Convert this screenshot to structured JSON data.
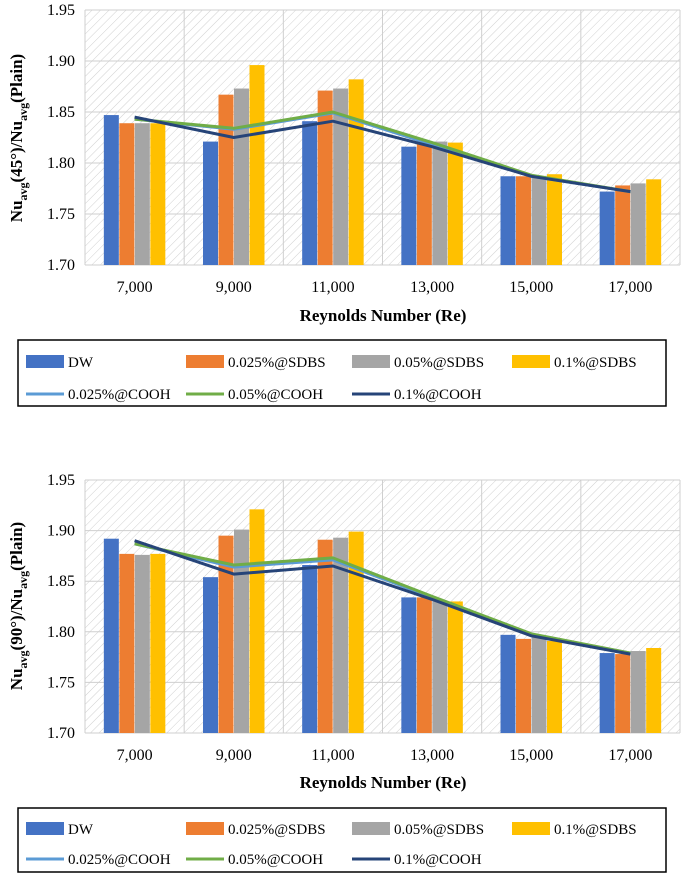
{
  "colors": {
    "DW": "#4472C4",
    "sdbs025": "#ED7D31",
    "sdbs05": "#A5A5A5",
    "sdbs1": "#FFC000",
    "cooh025": "#5B9BD5",
    "cooh05": "#70AD47",
    "cooh1": "#264478"
  },
  "chart_data": [
    {
      "type": "bar",
      "ylabel_main": "Nu",
      "ylabel_sub1": "avg",
      "ylabel_mid": "(45°)/Nu",
      "ylabel_sub2": "avg",
      "ylabel_end": "(Plain)",
      "xlabel": "Reynolds Number (Re)",
      "ylim": [
        1.7,
        1.95
      ],
      "yticks": [
        "1.70",
        "1.75",
        "1.80",
        "1.85",
        "1.90",
        "1.95"
      ],
      "categories": [
        "7,000",
        "9,000",
        "11,000",
        "13,000",
        "15,000",
        "17,000"
      ],
      "bar_series": [
        {
          "name": "DW",
          "color_key": "DW",
          "values": [
            1.847,
            1.821,
            1.841,
            1.816,
            1.787,
            1.772
          ]
        },
        {
          "name": "0.025%@SDBS",
          "color_key": "sdbs025",
          "values": [
            1.839,
            1.867,
            1.871,
            1.82,
            1.787,
            1.778
          ]
        },
        {
          "name": "0.05%@SDBS",
          "color_key": "sdbs05",
          "values": [
            1.839,
            1.873,
            1.873,
            1.821,
            1.787,
            1.78
          ]
        },
        {
          "name": "0.1%@SDBS",
          "color_key": "sdbs1",
          "values": [
            1.839,
            1.896,
            1.882,
            1.82,
            1.789,
            1.784
          ]
        }
      ],
      "line_series": [
        {
          "name": "0.025%@COOH",
          "color_key": "cooh025",
          "values": [
            1.843,
            1.833,
            1.849,
            1.818,
            1.787,
            1.772
          ]
        },
        {
          "name": "0.05%@COOH",
          "color_key": "cooh05",
          "values": [
            1.843,
            1.834,
            1.85,
            1.82,
            1.788,
            1.772
          ]
        },
        {
          "name": "0.1%@COOH",
          "color_key": "cooh1",
          "values": [
            1.845,
            1.825,
            1.841,
            1.816,
            1.787,
            1.772
          ]
        }
      ]
    },
    {
      "type": "bar",
      "ylabel_main": "Nu",
      "ylabel_sub1": "avg",
      "ylabel_mid": "(90°)/Nu",
      "ylabel_sub2": "avg",
      "ylabel_end": "(Plain)",
      "xlabel": "Reynolds Number (Re)",
      "ylim": [
        1.7,
        1.95
      ],
      "yticks": [
        "1.70",
        "1.75",
        "1.80",
        "1.85",
        "1.90",
        "1.95"
      ],
      "categories": [
        "7,000",
        "9,000",
        "11,000",
        "13,000",
        "15,000",
        "17,000"
      ],
      "bar_series": [
        {
          "name": "DW",
          "color_key": "DW",
          "values": [
            1.892,
            1.854,
            1.866,
            1.834,
            1.797,
            1.779
          ]
        },
        {
          "name": "0.025%@SDBS",
          "color_key": "sdbs025",
          "values": [
            1.877,
            1.895,
            1.891,
            1.834,
            1.793,
            1.778
          ]
        },
        {
          "name": "0.05%@SDBS",
          "color_key": "sdbs05",
          "values": [
            1.876,
            1.901,
            1.893,
            1.831,
            1.795,
            1.781
          ]
        },
        {
          "name": "0.1%@SDBS",
          "color_key": "sdbs1",
          "values": [
            1.877,
            1.921,
            1.899,
            1.83,
            1.791,
            1.784
          ]
        }
      ],
      "line_series": [
        {
          "name": "0.025%@COOH",
          "color_key": "cooh025",
          "values": [
            1.887,
            1.864,
            1.871,
            1.834,
            1.797,
            1.779
          ]
        },
        {
          "name": "0.05%@COOH",
          "color_key": "cooh05",
          "values": [
            1.887,
            1.866,
            1.873,
            1.835,
            1.798,
            1.779
          ]
        },
        {
          "name": "0.1%@COOH",
          "color_key": "cooh1",
          "values": [
            1.89,
            1.857,
            1.865,
            1.832,
            1.796,
            1.778
          ]
        }
      ]
    }
  ],
  "legend": [
    {
      "label": "DW",
      "kind": "bar",
      "color_key": "DW"
    },
    {
      "label": "0.025%@SDBS",
      "kind": "bar",
      "color_key": "sdbs025"
    },
    {
      "label": "0.05%@SDBS",
      "kind": "bar",
      "color_key": "sdbs05"
    },
    {
      "label": "0.1%@SDBS",
      "kind": "bar",
      "color_key": "sdbs1"
    },
    {
      "label": "0.025%@COOH",
      "kind": "line",
      "color_key": "cooh025"
    },
    {
      "label": "0.05%@COOH",
      "kind": "line",
      "color_key": "cooh05"
    },
    {
      "label": "0.1%@COOH",
      "kind": "line",
      "color_key": "cooh1"
    }
  ]
}
